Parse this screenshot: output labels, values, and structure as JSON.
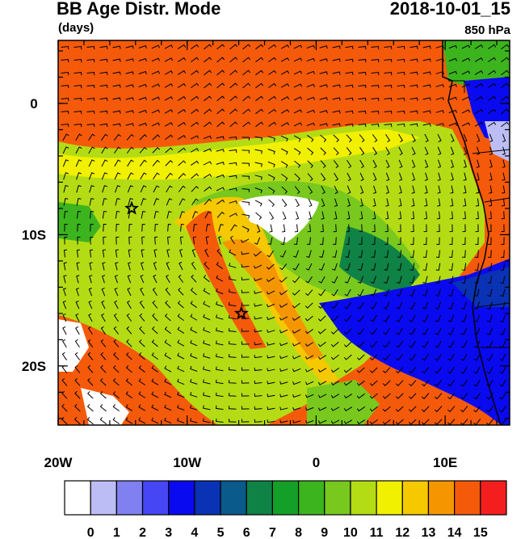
{
  "header": {
    "title": "BB Age Distr. Mode",
    "units": "(days)",
    "datetime": "2018-10-01_15",
    "level": "850 hPa"
  },
  "axes": {
    "x_ticks": [
      {
        "lon": -20,
        "label": "20W"
      },
      {
        "lon": -10,
        "label": "10W"
      },
      {
        "lon": 0,
        "label": "0"
      },
      {
        "lon": 10,
        "label": "10E"
      }
    ],
    "y_ticks": [
      {
        "lat": 0,
        "label": "0"
      },
      {
        "lat": -10,
        "label": "10S"
      },
      {
        "lat": -20,
        "label": "20S"
      }
    ],
    "lon_range": [
      -20,
      15
    ],
    "lat_range": [
      -24.5,
      4.8
    ]
  },
  "colorbar": {
    "labels": [
      "0",
      "1",
      "2",
      "3",
      "4",
      "5",
      "6",
      "7",
      "8",
      "9",
      "10",
      "11",
      "12",
      "13",
      "14",
      "15"
    ],
    "colors": [
      "#ffffff",
      "#bdbdf5",
      "#8080f0",
      "#4646f5",
      "#0a0af0",
      "#0a32b4",
      "#0a5a8c",
      "#0f8246",
      "#14a028",
      "#3cb41e",
      "#78c81e",
      "#b4dc14",
      "#f0f000",
      "#f5c800",
      "#f59600",
      "#f55a0a",
      "#f51e1e"
    ]
  },
  "markers": [
    {
      "name": "star-marker-west",
      "lon": -14.3,
      "lat": -8.0
    },
    {
      "name": "star-marker-center",
      "lon": -5.8,
      "lat": -16.0
    }
  ]
}
